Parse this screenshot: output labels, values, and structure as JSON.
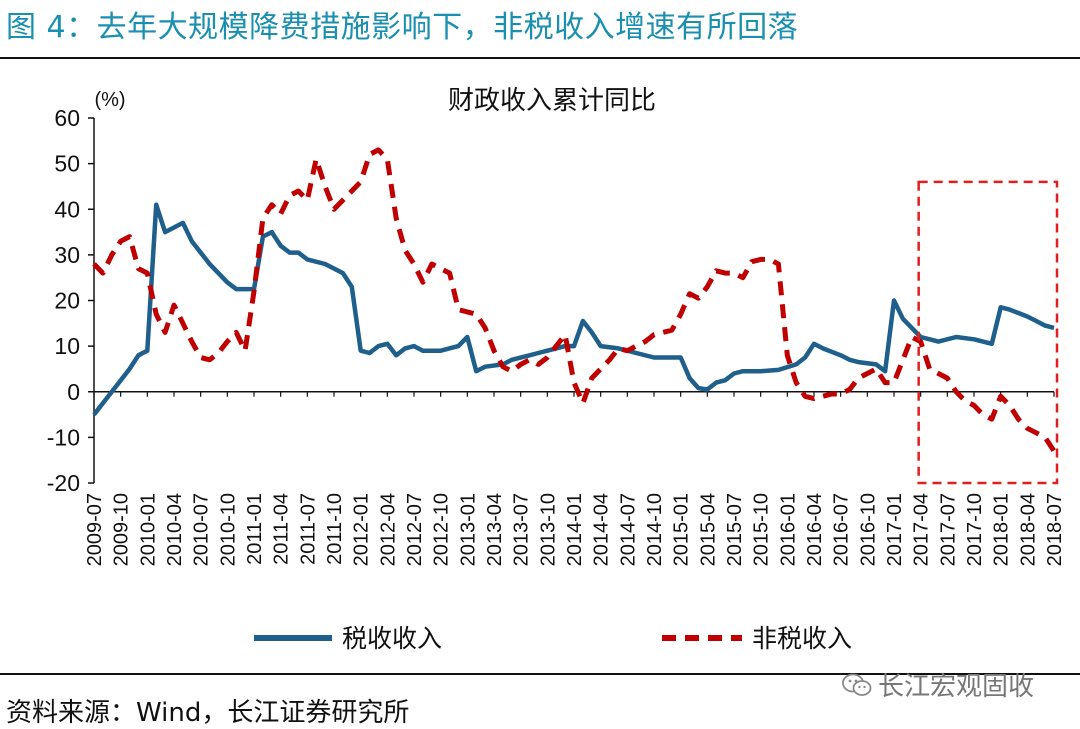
{
  "figure": {
    "title": "图 4：去年大规模降费措施影响下，非税收入增速有所回落",
    "source": "资料来源：Wind，长江证券研究所",
    "watermark": "长江宏观固收",
    "watermark_icon": "wechat-icon"
  },
  "chart_data": {
    "type": "line",
    "title": "财政收入累计同比",
    "ylabel": "(%)",
    "xlabel": "",
    "ylim": [
      -20,
      60
    ],
    "yticks": [
      -20,
      -10,
      0,
      10,
      20,
      30,
      40,
      50,
      60
    ],
    "x_tick_labels": [
      "2009-07",
      "2009-10",
      "2010-01",
      "2010-04",
      "2010-07",
      "2010-10",
      "2011-01",
      "2011-04",
      "2011-07",
      "2011-10",
      "2012-01",
      "2012-04",
      "2012-07",
      "2012-10",
      "2013-01",
      "2013-04",
      "2013-07",
      "2013-10",
      "2014-01",
      "2014-04",
      "2014-07",
      "2014-10",
      "2015-01",
      "2015-04",
      "2015-07",
      "2015-10",
      "2016-01",
      "2016-04",
      "2016-07",
      "2016-10",
      "2017-01",
      "2017-04",
      "2017-07",
      "2017-10",
      "2018-01",
      "2018-04",
      "2018-07"
    ],
    "grid": false,
    "legend_position": "bottom",
    "highlight_box": {
      "from": "2017-04",
      "to": "2018-07",
      "ymin": -20,
      "ymax": 46,
      "style": "red dashed"
    },
    "series": [
      {
        "name": "税收收入",
        "color": "#1f5f8b",
        "style": "solid",
        "points": [
          [
            "2009-07",
            -5
          ],
          [
            "2009-09",
            0
          ],
          [
            "2009-11",
            5
          ],
          [
            "2009-12",
            8
          ],
          [
            "2010-01",
            9
          ],
          [
            "2010-02",
            41
          ],
          [
            "2010-03",
            35
          ],
          [
            "2010-05",
            37
          ],
          [
            "2010-06",
            33
          ],
          [
            "2010-08",
            28
          ],
          [
            "2010-10",
            24
          ],
          [
            "2010-11",
            22.5
          ],
          [
            "2011-01",
            22.5
          ],
          [
            "2011-02",
            34
          ],
          [
            "2011-03",
            35
          ],
          [
            "2011-04",
            32
          ],
          [
            "2011-05",
            30.5
          ],
          [
            "2011-06",
            30.5
          ],
          [
            "2011-07",
            29
          ],
          [
            "2011-09",
            28
          ],
          [
            "2011-11",
            26
          ],
          [
            "2011-12",
            23
          ],
          [
            "2012-01",
            9
          ],
          [
            "2012-02",
            8.5
          ],
          [
            "2012-03",
            10
          ],
          [
            "2012-04",
            10.5
          ],
          [
            "2012-05",
            8
          ],
          [
            "2012-06",
            9.5
          ],
          [
            "2012-07",
            10
          ],
          [
            "2012-08",
            9
          ],
          [
            "2012-10",
            9
          ],
          [
            "2012-12",
            10
          ],
          [
            "2013-01",
            12
          ],
          [
            "2013-02",
            4.5
          ],
          [
            "2013-03",
            5.5
          ],
          [
            "2013-05",
            6
          ],
          [
            "2013-06",
            7
          ],
          [
            "2013-08",
            8
          ],
          [
            "2013-09",
            8.5
          ],
          [
            "2013-10",
            9
          ],
          [
            "2013-11",
            9.5
          ],
          [
            "2013-12",
            10
          ],
          [
            "2014-01",
            10
          ],
          [
            "2014-02",
            15.5
          ],
          [
            "2014-03",
            13
          ],
          [
            "2014-04",
            10
          ],
          [
            "2014-06",
            9.5
          ],
          [
            "2014-08",
            8.5
          ],
          [
            "2014-10",
            7.5
          ],
          [
            "2014-12",
            7.5
          ],
          [
            "2015-01",
            7.5
          ],
          [
            "2015-02",
            3
          ],
          [
            "2015-03",
            0.8
          ],
          [
            "2015-04",
            0.5
          ],
          [
            "2015-05",
            2
          ],
          [
            "2015-06",
            2.5
          ],
          [
            "2015-07",
            4
          ],
          [
            "2015-08",
            4.5
          ],
          [
            "2015-10",
            4.5
          ],
          [
            "2015-12",
            4.8
          ],
          [
            "2016-02",
            6
          ],
          [
            "2016-03",
            7.5
          ],
          [
            "2016-04",
            10.5
          ],
          [
            "2016-05",
            9.5
          ],
          [
            "2016-07",
            8
          ],
          [
            "2016-08",
            7
          ],
          [
            "2016-09",
            6.5
          ],
          [
            "2016-11",
            6
          ],
          [
            "2016-12",
            4.5
          ],
          [
            "2017-01",
            20
          ],
          [
            "2017-02",
            16
          ],
          [
            "2017-03",
            14
          ],
          [
            "2017-04",
            12
          ],
          [
            "2017-06",
            11
          ],
          [
            "2017-08",
            12
          ],
          [
            "2017-10",
            11.5
          ],
          [
            "2017-12",
            10.5
          ],
          [
            "2018-01",
            18.5
          ],
          [
            "2018-02",
            18
          ],
          [
            "2018-04",
            16.5
          ],
          [
            "2018-05",
            15.5
          ],
          [
            "2018-06",
            14.5
          ],
          [
            "2018-07",
            14
          ]
        ]
      },
      {
        "name": "非税收入",
        "color": "#c00000",
        "style": "dashed",
        "points": [
          [
            "2009-07",
            28
          ],
          [
            "2009-08",
            26
          ],
          [
            "2009-09",
            30
          ],
          [
            "2009-10",
            33
          ],
          [
            "2009-11",
            34
          ],
          [
            "2009-12",
            27
          ],
          [
            "2010-01",
            26
          ],
          [
            "2010-02",
            17
          ],
          [
            "2010-03",
            13
          ],
          [
            "2010-04",
            19
          ],
          [
            "2010-05",
            15
          ],
          [
            "2010-06",
            11
          ],
          [
            "2010-07",
            7.5
          ],
          [
            "2010-08",
            7
          ],
          [
            "2010-09",
            8.5
          ],
          [
            "2010-10",
            11
          ],
          [
            "2010-11",
            13
          ],
          [
            "2010-12",
            9
          ],
          [
            "2011-01",
            22
          ],
          [
            "2011-02",
            38
          ],
          [
            "2011-03",
            41
          ],
          [
            "2011-04",
            39
          ],
          [
            "2011-05",
            43
          ],
          [
            "2011-06",
            44
          ],
          [
            "2011-07",
            42
          ],
          [
            "2011-08",
            51
          ],
          [
            "2011-09",
            45
          ],
          [
            "2011-10",
            40
          ],
          [
            "2011-11",
            42
          ],
          [
            "2011-12",
            44
          ],
          [
            "2012-01",
            46
          ],
          [
            "2012-02",
            52
          ],
          [
            "2012-03",
            53
          ],
          [
            "2012-04",
            51
          ],
          [
            "2012-05",
            38
          ],
          [
            "2012-06",
            31
          ],
          [
            "2012-07",
            28
          ],
          [
            "2012-08",
            24
          ],
          [
            "2012-09",
            28
          ],
          [
            "2012-10",
            27
          ],
          [
            "2012-11",
            26
          ],
          [
            "2012-12",
            18
          ],
          [
            "2013-01",
            17.5
          ],
          [
            "2013-02",
            17
          ],
          [
            "2013-03",
            14
          ],
          [
            "2013-04",
            9
          ],
          [
            "2013-05",
            5.5
          ],
          [
            "2013-06",
            4.5
          ],
          [
            "2013-07",
            6
          ],
          [
            "2013-08",
            7
          ],
          [
            "2013-09",
            6
          ],
          [
            "2013-10",
            7.5
          ],
          [
            "2013-11",
            10
          ],
          [
            "2013-12",
            12.5
          ],
          [
            "2014-01",
            2
          ],
          [
            "2014-02",
            -2.5
          ],
          [
            "2014-03",
            3
          ],
          [
            "2014-04",
            5
          ],
          [
            "2014-05",
            7
          ],
          [
            "2014-06",
            9.5
          ],
          [
            "2014-07",
            9
          ],
          [
            "2014-08",
            10
          ],
          [
            "2014-09",
            11
          ],
          [
            "2014-10",
            12.5
          ],
          [
            "2014-11",
            13
          ],
          [
            "2014-12",
            13.5
          ],
          [
            "2015-01",
            17
          ],
          [
            "2015-02",
            21.5
          ],
          [
            "2015-03",
            20.5
          ],
          [
            "2015-04",
            23
          ],
          [
            "2015-05",
            26.5
          ],
          [
            "2015-06",
            26
          ],
          [
            "2015-07",
            26
          ],
          [
            "2015-08",
            25
          ],
          [
            "2015-09",
            28.5
          ],
          [
            "2015-10",
            29
          ],
          [
            "2015-11",
            29
          ],
          [
            "2015-12",
            28
          ],
          [
            "2016-01",
            8
          ],
          [
            "2016-02",
            2
          ],
          [
            "2016-03",
            -1
          ],
          [
            "2016-04",
            -1.5
          ],
          [
            "2016-05",
            -1
          ],
          [
            "2016-06",
            -0.5
          ],
          [
            "2016-07",
            -0.5
          ],
          [
            "2016-08",
            0.5
          ],
          [
            "2016-09",
            3
          ],
          [
            "2016-10",
            4
          ],
          [
            "2016-11",
            5
          ],
          [
            "2016-12",
            2
          ],
          [
            "2017-01",
            2
          ],
          [
            "2017-02",
            7
          ],
          [
            "2017-03",
            12
          ],
          [
            "2017-04",
            11
          ],
          [
            "2017-05",
            5
          ],
          [
            "2017-06",
            4
          ],
          [
            "2017-07",
            3
          ],
          [
            "2017-08",
            0
          ],
          [
            "2017-09",
            -2
          ],
          [
            "2017-10",
            -3
          ],
          [
            "2017-11",
            -5
          ],
          [
            "2017-12",
            -6
          ],
          [
            "2018-01",
            -1
          ],
          [
            "2018-02",
            -3
          ],
          [
            "2018-03",
            -6
          ],
          [
            "2018-04",
            -8
          ],
          [
            "2018-05",
            -9
          ],
          [
            "2018-06",
            -10
          ],
          [
            "2018-07",
            -13
          ]
        ]
      }
    ]
  }
}
